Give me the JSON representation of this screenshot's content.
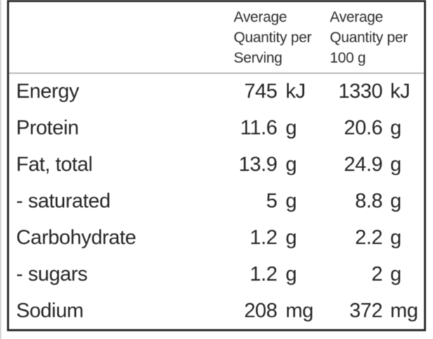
{
  "table": {
    "columns": [
      {
        "header": "Average Quantity per Serving"
      },
      {
        "header": "Average Quantity per 100 g"
      }
    ],
    "rows": [
      {
        "label": "Energy",
        "per_serving": {
          "value": "745",
          "unit": "kJ"
        },
        "per_100g": {
          "value": "1330",
          "unit": "kJ"
        }
      },
      {
        "label": "Protein",
        "per_serving": {
          "value": "11.6",
          "unit": "g"
        },
        "per_100g": {
          "value": "20.6",
          "unit": "g"
        }
      },
      {
        "label": "Fat, total",
        "per_serving": {
          "value": "13.9",
          "unit": "g"
        },
        "per_100g": {
          "value": "24.9",
          "unit": "g"
        }
      },
      {
        "label": "- saturated",
        "per_serving": {
          "value": "5",
          "unit": "g"
        },
        "per_100g": {
          "value": "8.8",
          "unit": "g"
        }
      },
      {
        "label": "Carbohydrate",
        "per_serving": {
          "value": "1.2",
          "unit": "g"
        },
        "per_100g": {
          "value": "2.2",
          "unit": "g"
        }
      },
      {
        "label": "- sugars",
        "per_serving": {
          "value": "1.2",
          "unit": "g"
        },
        "per_100g": {
          "value": "2",
          "unit": "g"
        }
      },
      {
        "label": "Sodium",
        "per_serving": {
          "value": "208",
          "unit": "mg"
        },
        "per_100g": {
          "value": "372",
          "unit": "mg"
        }
      }
    ]
  },
  "colors": {
    "border": "#2b2b2b",
    "separator": "#bdbdbd",
    "text": "#262626",
    "background": "#ffffff"
  }
}
